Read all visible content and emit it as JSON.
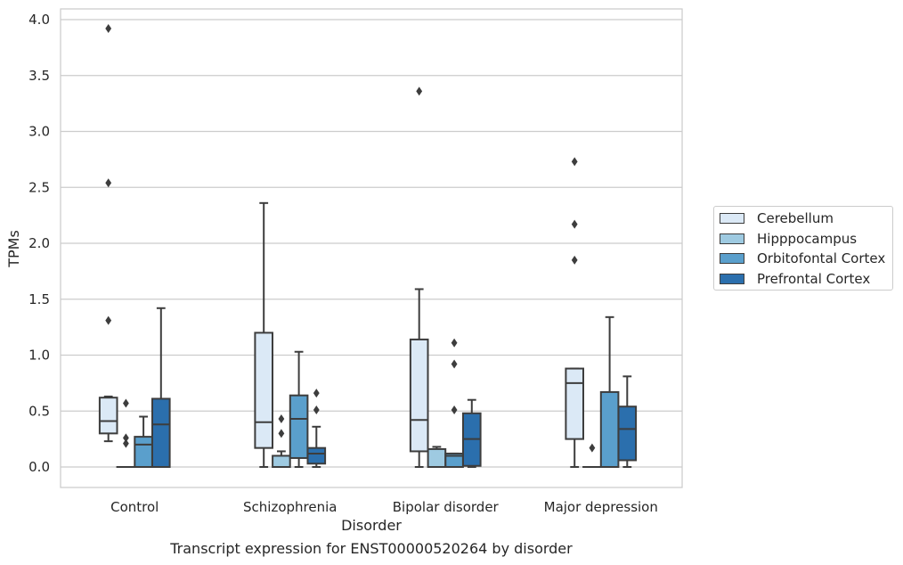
{
  "chart_data": {
    "type": "box",
    "title": "Transcript expression for ENST00000520264 by disorder",
    "xlabel": "Disorder",
    "ylabel": "TPMs",
    "ylim": [
      -0.19,
      4.12
    ],
    "yticks": [
      "0.0",
      "0.5",
      "1.0",
      "1.5",
      "2.0",
      "2.5",
      "3.0",
      "3.5",
      "4.0"
    ],
    "grid": true,
    "legend_position": "right",
    "categories": [
      "Control",
      "Schizophrenia",
      "Bipolar disorder",
      "Major depression"
    ],
    "series": [
      {
        "name": "Cerebellum",
        "color": "#dbe9f6",
        "boxes": [
          {
            "min": 0.23,
            "q1": 0.3,
            "median": 0.41,
            "q3": 0.62,
            "max": 0.63,
            "outliers": [
              1.31,
              2.54,
              3.92
            ]
          },
          {
            "min": 0.0,
            "q1": 0.17,
            "median": 0.4,
            "q3": 1.2,
            "max": 2.36,
            "outliers": []
          },
          {
            "min": 0.0,
            "q1": 0.14,
            "median": 0.42,
            "q3": 1.14,
            "max": 1.59,
            "outliers": [
              3.36
            ]
          },
          {
            "min": 0.0,
            "q1": 0.25,
            "median": 0.75,
            "q3": 0.88,
            "max": 0.88,
            "outliers": [
              1.85,
              2.17,
              2.73
            ]
          }
        ]
      },
      {
        "name": "Hipppocampus",
        "color": "#9ecae1",
        "boxes": [
          {
            "min": 0.0,
            "q1": 0.0,
            "median": 0.0,
            "q3": 0.0,
            "max": 0.0,
            "outliers": [
              0.21,
              0.26,
              0.57
            ]
          },
          {
            "min": 0.0,
            "q1": 0.0,
            "median": 0.0,
            "q3": 0.1,
            "max": 0.14,
            "outliers": [
              0.3,
              0.43
            ]
          },
          {
            "min": 0.0,
            "q1": 0.0,
            "median": 0.0,
            "q3": 0.16,
            "max": 0.18,
            "outliers": []
          },
          {
            "min": 0.0,
            "q1": 0.0,
            "median": 0.0,
            "q3": 0.0,
            "max": 0.0,
            "outliers": [
              0.17
            ]
          }
        ]
      },
      {
        "name": "Orbitofontal Cortex",
        "color": "#5a9fcc",
        "boxes": [
          {
            "min": 0.0,
            "q1": 0.0,
            "median": 0.2,
            "q3": 0.27,
            "max": 0.45,
            "outliers": []
          },
          {
            "min": 0.0,
            "q1": 0.08,
            "median": 0.43,
            "q3": 0.64,
            "max": 1.03,
            "outliers": []
          },
          {
            "min": 0.0,
            "q1": 0.0,
            "median": 0.1,
            "q3": 0.12,
            "max": 0.12,
            "outliers": [
              0.51,
              0.92,
              1.11
            ]
          },
          {
            "min": 0.0,
            "q1": 0.0,
            "median": 0.0,
            "q3": 0.67,
            "max": 1.34,
            "outliers": []
          }
        ]
      },
      {
        "name": "Prefrontal Cortex",
        "color": "#2b6fad",
        "boxes": [
          {
            "min": 0.0,
            "q1": 0.0,
            "median": 0.38,
            "q3": 0.61,
            "max": 1.42,
            "outliers": []
          },
          {
            "min": 0.0,
            "q1": 0.03,
            "median": 0.12,
            "q3": 0.17,
            "max": 0.36,
            "outliers": [
              0.51,
              0.66
            ]
          },
          {
            "min": 0.0,
            "q1": 0.01,
            "median": 0.25,
            "q3": 0.48,
            "max": 0.6,
            "outliers": []
          },
          {
            "min": 0.0,
            "q1": 0.06,
            "median": 0.34,
            "q3": 0.54,
            "max": 0.81,
            "outliers": []
          }
        ]
      }
    ]
  }
}
